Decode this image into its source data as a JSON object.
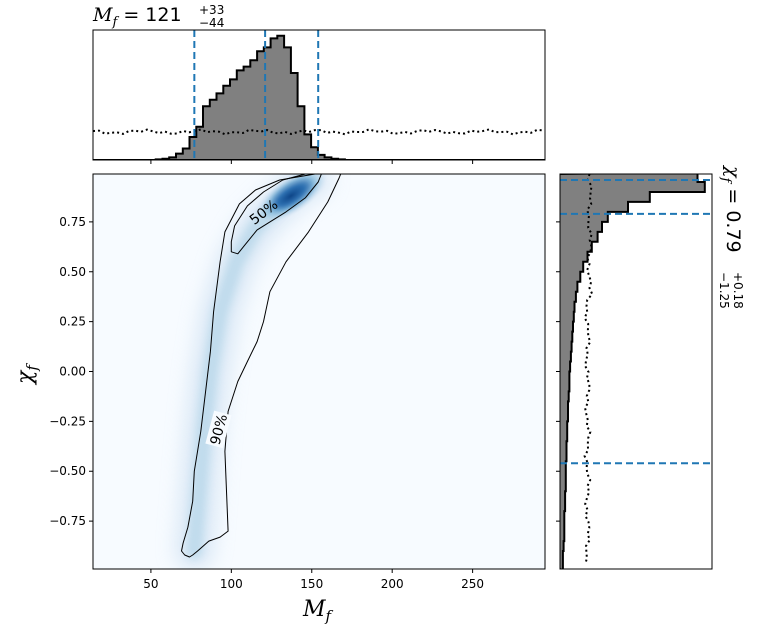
{
  "chart_data": [
    {
      "type": "heatmap",
      "panel": "main-2d-posterior",
      "xlabel_base": "M",
      "xlabel_sub": "f",
      "ylabel_base": "χ",
      "ylabel_sub": "f",
      "xlim": [
        14,
        295
      ],
      "ylim": [
        -0.99,
        0.99
      ],
      "xticks": [
        50,
        100,
        150,
        200,
        250
      ],
      "xtick_labels": [
        "50",
        "100",
        "150",
        "200",
        "250"
      ],
      "yticks": [
        -0.75,
        -0.5,
        -0.25,
        0.0,
        0.25,
        0.5,
        0.75
      ],
      "ytick_labels": [
        "−0.75",
        "−0.50",
        "−0.25",
        "0.00",
        "0.25",
        "0.50",
        "0.75"
      ],
      "colormap": [
        "#f7fbff",
        "#deebf7",
        "#c6dbef",
        "#9ecae1",
        "#6baed6",
        "#4292c6",
        "#2171b5",
        "#08519c",
        "#08306b"
      ],
      "ridge": [
        {
          "x": 77,
          "y": -0.9
        },
        {
          "x": 80,
          "y": -0.6
        },
        {
          "x": 83,
          "y": -0.3
        },
        {
          "x": 87,
          "y": 0.0
        },
        {
          "x": 93,
          "y": 0.3
        },
        {
          "x": 103,
          "y": 0.55
        },
        {
          "x": 115,
          "y": 0.72
        },
        {
          "x": 130,
          "y": 0.84
        },
        {
          "x": 139,
          "y": 0.91
        },
        {
          "x": 150,
          "y": 0.96
        }
      ],
      "peak": {
        "x": 137,
        "y": 0.88
      },
      "contours": [
        {
          "label": "50%",
          "label_position": {
            "x": 120,
            "y": 0.8
          },
          "points": [
            {
              "x": 100,
              "y": 0.6
            },
            {
              "x": 104,
              "y": 0.59
            },
            {
              "x": 108,
              "y": 0.63
            },
            {
              "x": 116,
              "y": 0.71
            },
            {
              "x": 124,
              "y": 0.75
            },
            {
              "x": 134,
              "y": 0.8
            },
            {
              "x": 146,
              "y": 0.87
            },
            {
              "x": 154,
              "y": 0.95
            },
            {
              "x": 156,
              "y": 0.99
            },
            {
              "x": 146,
              "y": 0.99
            },
            {
              "x": 132,
              "y": 0.96
            },
            {
              "x": 120,
              "y": 0.9
            },
            {
              "x": 110,
              "y": 0.83
            },
            {
              "x": 102,
              "y": 0.73
            },
            {
              "x": 100,
              "y": 0.65
            }
          ]
        },
        {
          "label": "90%",
          "label_position": {
            "x": 92,
            "y": -0.29
          },
          "points": [
            {
              "x": 69,
              "y": -0.9
            },
            {
              "x": 71,
              "y": -0.92
            },
            {
              "x": 74,
              "y": -0.93
            },
            {
              "x": 76,
              "y": -0.92
            },
            {
              "x": 79,
              "y": -0.9
            },
            {
              "x": 86,
              "y": -0.85
            },
            {
              "x": 93,
              "y": -0.83
            },
            {
              "x": 98,
              "y": -0.8
            },
            {
              "x": 97,
              "y": -0.6
            },
            {
              "x": 96,
              "y": -0.4
            },
            {
              "x": 98,
              "y": -0.2
            },
            {
              "x": 104,
              "y": -0.05
            },
            {
              "x": 110,
              "y": 0.05
            },
            {
              "x": 116,
              "y": 0.15
            },
            {
              "x": 120,
              "y": 0.25
            },
            {
              "x": 124,
              "y": 0.4
            },
            {
              "x": 134,
              "y": 0.55
            },
            {
              "x": 148,
              "y": 0.7
            },
            {
              "x": 160,
              "y": 0.85
            },
            {
              "x": 167,
              "y": 0.97
            },
            {
              "x": 168,
              "y": 0.99
            },
            {
              "x": 152,
              "y": 0.99
            },
            {
              "x": 130,
              "y": 0.96
            },
            {
              "x": 115,
              "y": 0.91
            },
            {
              "x": 105,
              "y": 0.84
            },
            {
              "x": 96,
              "y": 0.7
            },
            {
              "x": 93,
              "y": 0.55
            },
            {
              "x": 89,
              "y": 0.3
            },
            {
              "x": 87,
              "y": 0.1
            },
            {
              "x": 84,
              "y": -0.1
            },
            {
              "x": 81,
              "y": -0.3
            },
            {
              "x": 77,
              "y": -0.5
            },
            {
              "x": 76,
              "y": -0.65
            },
            {
              "x": 73,
              "y": -0.78
            },
            {
              "x": 70,
              "y": -0.86
            }
          ]
        }
      ]
    },
    {
      "type": "bar",
      "panel": "top-marginal-histogram",
      "title_text": "M_f = 121 +33 −44",
      "title_base": "M",
      "title_sub": "f",
      "title_value": "121",
      "title_upper": "+33",
      "title_lower": "−44",
      "xlim": [
        14,
        295
      ],
      "bin_edges_start": 53,
      "bin_width": 4.2,
      "values": [
        0.005,
        0.01,
        0.02,
        0.05,
        0.09,
        0.18,
        0.26,
        0.42,
        0.47,
        0.52,
        0.58,
        0.63,
        0.7,
        0.73,
        0.78,
        0.85,
        0.88,
        0.95,
        0.97,
        0.88,
        0.68,
        0.42,
        0.2,
        0.1,
        0.04,
        0.02,
        0.01,
        0.005
      ],
      "prior_level": 0.22,
      "quantile_lines": [
        77,
        121,
        154
      ],
      "ylim": [
        0,
        1.0
      ]
    },
    {
      "type": "bar",
      "panel": "right-marginal-histogram",
      "title_text": "χ_f = 0.79 +0.18 −1.25",
      "title_base": "χ",
      "title_sub": "f",
      "title_value": "0.79",
      "title_upper": "+0.18",
      "title_lower": "−1.25",
      "ylim": [
        -0.99,
        0.99
      ],
      "orientation": "horizontal",
      "prior_level": 0.19,
      "quantile_lines": [
        0.96,
        0.79,
        -0.46
      ],
      "bins": [
        {
          "y": 0.975,
          "value": 0.95
        },
        {
          "y": 0.925,
          "value": 1.0
        },
        {
          "y": 0.875,
          "value": 0.62
        },
        {
          "y": 0.825,
          "value": 0.47
        },
        {
          "y": 0.775,
          "value": 0.33
        },
        {
          "y": 0.725,
          "value": 0.29
        },
        {
          "y": 0.675,
          "value": 0.26
        },
        {
          "y": 0.625,
          "value": 0.22
        },
        {
          "y": 0.575,
          "value": 0.19
        },
        {
          "y": 0.525,
          "value": 0.16
        },
        {
          "y": 0.475,
          "value": 0.14
        },
        {
          "y": 0.425,
          "value": 0.12
        },
        {
          "y": 0.375,
          "value": 0.11
        },
        {
          "y": 0.325,
          "value": 0.1
        },
        {
          "y": 0.275,
          "value": 0.095
        },
        {
          "y": 0.225,
          "value": 0.09
        },
        {
          "y": 0.175,
          "value": 0.085
        },
        {
          "y": 0.125,
          "value": 0.08
        },
        {
          "y": 0.075,
          "value": 0.075
        },
        {
          "y": 0.025,
          "value": 0.07
        },
        {
          "y": -0.025,
          "value": 0.065
        },
        {
          "y": -0.075,
          "value": 0.065
        },
        {
          "y": -0.125,
          "value": 0.06
        },
        {
          "y": -0.175,
          "value": 0.055
        },
        {
          "y": -0.225,
          "value": 0.055
        },
        {
          "y": -0.275,
          "value": 0.05
        },
        {
          "y": -0.325,
          "value": 0.05
        },
        {
          "y": -0.375,
          "value": 0.045
        },
        {
          "y": -0.425,
          "value": 0.045
        },
        {
          "y": -0.475,
          "value": 0.04
        },
        {
          "y": -0.525,
          "value": 0.04
        },
        {
          "y": -0.575,
          "value": 0.04
        },
        {
          "y": -0.625,
          "value": 0.035
        },
        {
          "y": -0.675,
          "value": 0.035
        },
        {
          "y": -0.725,
          "value": 0.03
        },
        {
          "y": -0.775,
          "value": 0.03
        },
        {
          "y": -0.825,
          "value": 0.03
        },
        {
          "y": -0.875,
          "value": 0.025
        },
        {
          "y": -0.925,
          "value": 0.02
        },
        {
          "y": -0.975,
          "value": 0.02
        }
      ],
      "xlim": [
        0,
        1.05
      ]
    }
  ],
  "colors": {
    "histogram_fill": "#808080",
    "histogram_edge": "#000000",
    "quantile_line": "#1f77b4",
    "contour_line": "#000000",
    "background": "#ffffff"
  }
}
